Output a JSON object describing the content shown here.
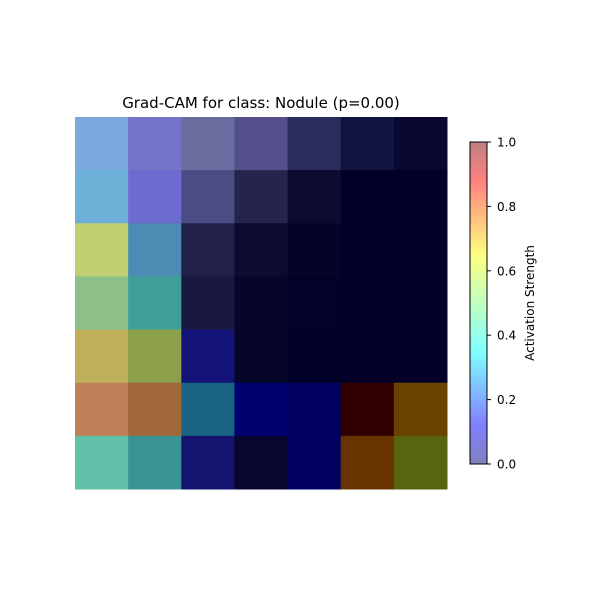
{
  "chart_data": {
    "type": "heatmap",
    "title": "Grad-CAM for class: Nodule (p=0.00)",
    "grid": false,
    "axes_visible": false,
    "rows": 7,
    "cols": 7,
    "cells": [
      [
        "#78a8dc",
        "#7474c8",
        "#6c6ca0",
        "#54508c",
        "#2c2c5c",
        "#121440",
        "#080830"
      ],
      [
        "#6cb0d8",
        "#6c6cd0",
        "#4c4c84",
        "#24244c",
        "#0c0c30",
        "#000028",
        "#000028"
      ],
      [
        "#c0d070",
        "#4c8cb4",
        "#202048",
        "#0c0c30",
        "#040428",
        "#000028",
        "#000028"
      ],
      [
        "#8cc088",
        "#40a098",
        "#181840",
        "#060628",
        "#020228",
        "#000028",
        "#000028"
      ],
      [
        "#c0b05c",
        "#8ca04c",
        "#141478",
        "#060628",
        "#000028",
        "#000028",
        "#000028"
      ],
      [
        "#c08058",
        "#a06838",
        "#186480",
        "#000070",
        "#000060",
        "#300000",
        "#684400"
      ],
      [
        "#60c0a8",
        "#389494",
        "#141470",
        "#060630",
        "#000060",
        "#683400",
        "#586410"
      ]
    ],
    "colorbar": {
      "label": "Activation Strength",
      "min": 0.0,
      "max": 1.0,
      "ticks": [
        "0.0",
        "0.2",
        "0.4",
        "0.6",
        "0.8",
        "1.0"
      ],
      "colormap": "jet",
      "alpha": 0.5
    }
  }
}
